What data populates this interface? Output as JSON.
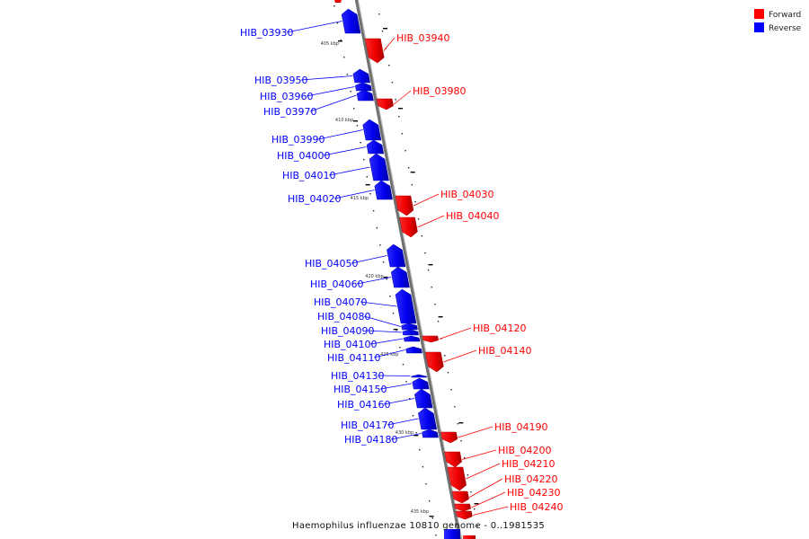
{
  "colors": {
    "forward": "#ff0000",
    "reverse": "#0000ff",
    "backbone": "#888888",
    "tick": "#000000"
  },
  "legend": [
    {
      "label": "Forward",
      "color": "#ff0000"
    },
    {
      "label": "Reverse",
      "color": "#0000ff"
    }
  ],
  "caption": "Haemophilus influenzae 10810 genome - 0..1981535",
  "scale_labels": [
    "405 kbp",
    "410 kbp",
    "415 kbp",
    "420 kbp",
    "425 kbp",
    "430 kbp",
    "435 kbp"
  ],
  "genes": [
    {
      "name": "HIB_03930",
      "strand": "reverse"
    },
    {
      "name": "HIB_03940",
      "strand": "forward"
    },
    {
      "name": "HIB_03950",
      "strand": "reverse"
    },
    {
      "name": "HIB_03960",
      "strand": "reverse"
    },
    {
      "name": "HIB_03970",
      "strand": "reverse"
    },
    {
      "name": "HIB_03980",
      "strand": "forward"
    },
    {
      "name": "HIB_03990",
      "strand": "reverse"
    },
    {
      "name": "HIB_04000",
      "strand": "reverse"
    },
    {
      "name": "HIB_04010",
      "strand": "reverse"
    },
    {
      "name": "HIB_04020",
      "strand": "reverse"
    },
    {
      "name": "HIB_04030",
      "strand": "forward"
    },
    {
      "name": "HIB_04040",
      "strand": "forward"
    },
    {
      "name": "HIB_04050",
      "strand": "reverse"
    },
    {
      "name": "HIB_04060",
      "strand": "reverse"
    },
    {
      "name": "HIB_04070",
      "strand": "reverse"
    },
    {
      "name": "HIB_04080",
      "strand": "reverse"
    },
    {
      "name": "HIB_04090",
      "strand": "reverse"
    },
    {
      "name": "HIB_04100",
      "strand": "reverse"
    },
    {
      "name": "HIB_04110",
      "strand": "reverse"
    },
    {
      "name": "HIB_04120",
      "strand": "forward"
    },
    {
      "name": "HIB_04130",
      "strand": "reverse"
    },
    {
      "name": "HIB_04140",
      "strand": "forward"
    },
    {
      "name": "HIB_04150",
      "strand": "reverse"
    },
    {
      "name": "HIB_04160",
      "strand": "reverse"
    },
    {
      "name": "HIB_04170",
      "strand": "reverse"
    },
    {
      "name": "HIB_04180",
      "strand": "reverse"
    },
    {
      "name": "HIB_04190",
      "strand": "forward"
    },
    {
      "name": "HIB_04200",
      "strand": "forward"
    },
    {
      "name": "HIB_04210",
      "strand": "forward"
    },
    {
      "name": "HIB_04220",
      "strand": "forward"
    },
    {
      "name": "HIB_04230",
      "strand": "forward"
    },
    {
      "name": "HIB_04240",
      "strand": "forward"
    }
  ]
}
